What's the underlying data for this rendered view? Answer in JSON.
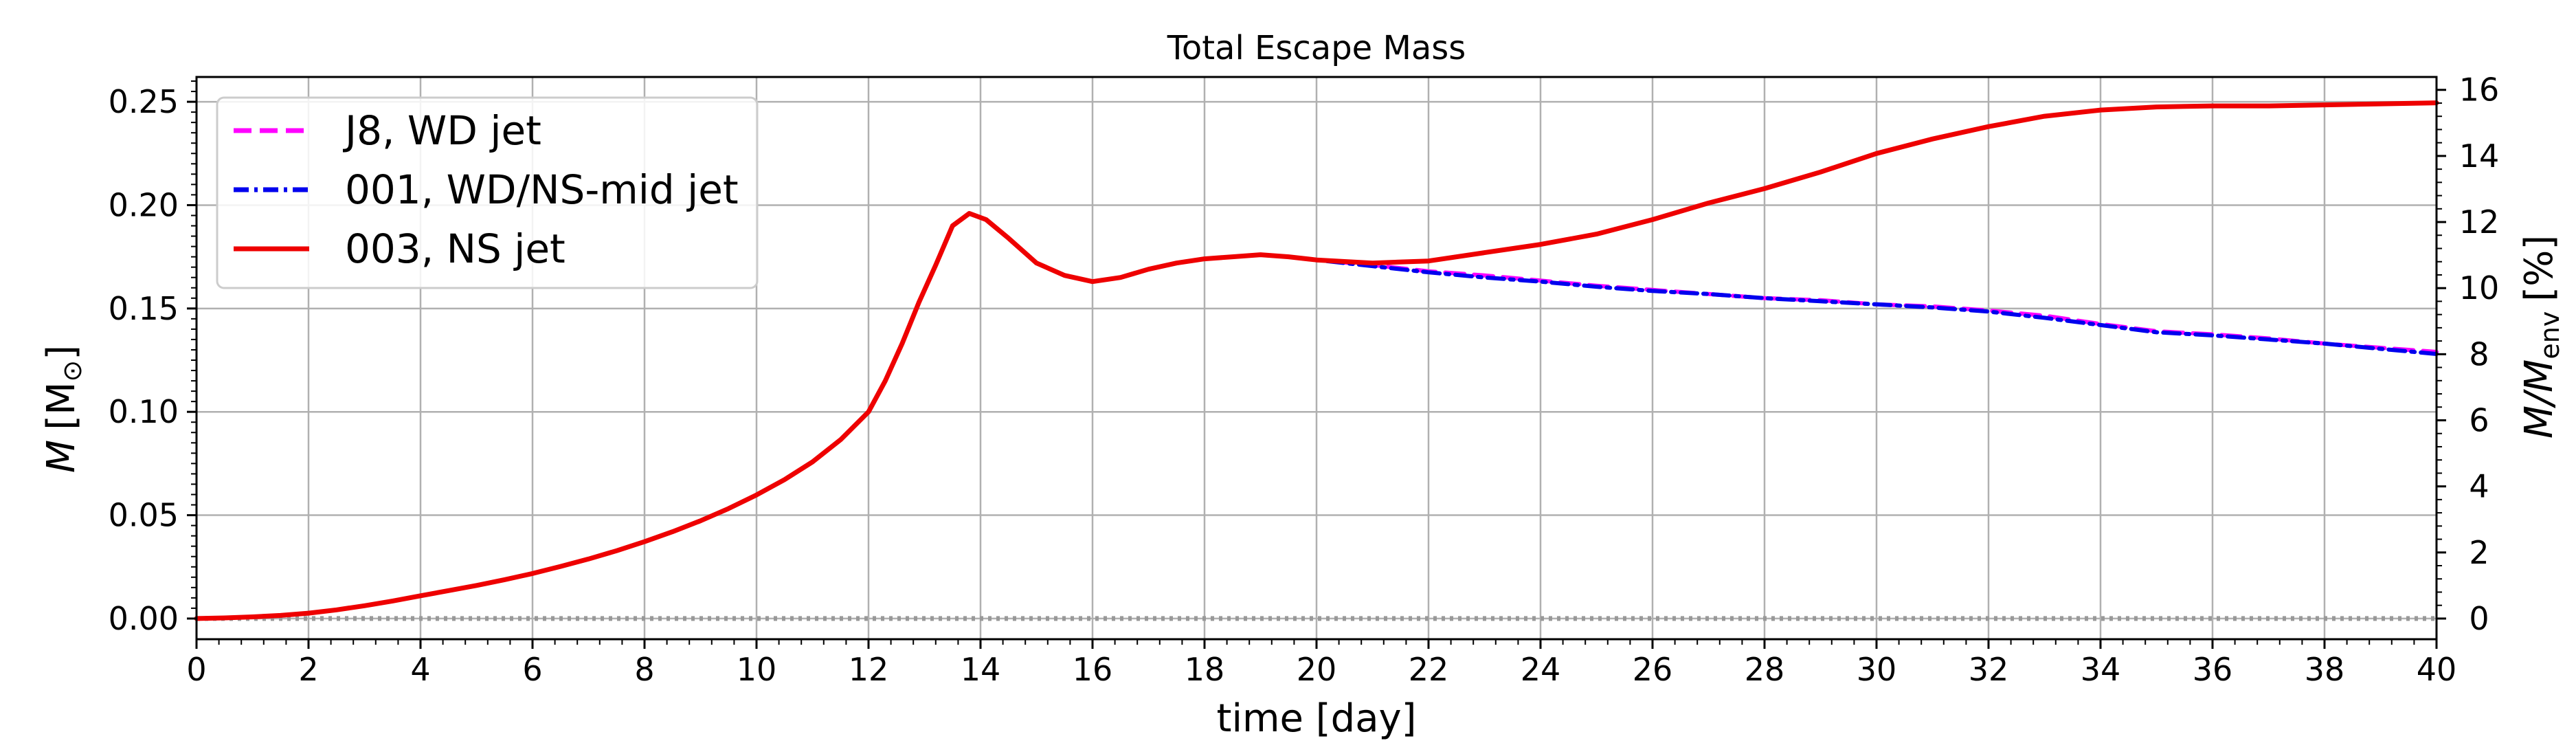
{
  "chart_data": {
    "type": "line",
    "title": "Total Escape Mass",
    "xlabel": "time [day]",
    "ylabel_prefix": "M",
    "ylabel_unit": "[M",
    "ylabel_sun": "⊙",
    "ylabel_close": "]",
    "y2label_prefix": "M/M",
    "y2label_sub": "env",
    "y2label_unit": "[%]",
    "xlim": [
      0,
      40
    ],
    "ylim": [
      -0.01,
      0.262
    ],
    "y2lim": [
      -0.6255,
      16.39
    ],
    "xticks": [
      "0",
      "2",
      "4",
      "6",
      "8",
      "10",
      "12",
      "14",
      "16",
      "18",
      "20",
      "22",
      "24",
      "26",
      "28",
      "30",
      "32",
      "34",
      "36",
      "38",
      "40"
    ],
    "yticks": [
      "0.00",
      "0.05",
      "0.10",
      "0.15",
      "0.20",
      "0.25"
    ],
    "y2ticks": [
      "0",
      "2",
      "4",
      "6",
      "8",
      "10",
      "12",
      "14",
      "16"
    ],
    "grid": true,
    "legend_position": "upper-left",
    "reference_line": {
      "y": 0.0,
      "style": "dotted",
      "color": "#999999"
    },
    "series": [
      {
        "name": "J8, WD jet",
        "color": "#ff00ff",
        "style": "dashed",
        "x": [
          0,
          0.5,
          1,
          1.5,
          2,
          2.5,
          3,
          3.5,
          4,
          4.5,
          5,
          5.5,
          6,
          6.5,
          7,
          7.5,
          8,
          8.5,
          9,
          9.5,
          10,
          10.5,
          11,
          11.5,
          12,
          12.3,
          12.6,
          12.9,
          13.2,
          13.5,
          13.8,
          14.1,
          14.5,
          15,
          15.5,
          16,
          16.5,
          17,
          17.5,
          18,
          18.5,
          19,
          19.5,
          20,
          21,
          22,
          23,
          24,
          25,
          26,
          27,
          28,
          29,
          30,
          31,
          32,
          33,
          34,
          35,
          36,
          37,
          38,
          39,
          40
        ],
        "y": [
          0,
          0.0003,
          0.0008,
          0.0015,
          0.0026,
          0.0042,
          0.0062,
          0.0085,
          0.011,
          0.0135,
          0.016,
          0.0188,
          0.0218,
          0.0252,
          0.0288,
          0.0328,
          0.0372,
          0.042,
          0.0473,
          0.0532,
          0.0598,
          0.0672,
          0.0758,
          0.0865,
          0.1,
          0.115,
          0.133,
          0.153,
          0.171,
          0.19,
          0.196,
          0.193,
          0.184,
          0.172,
          0.166,
          0.163,
          0.165,
          0.169,
          0.172,
          0.174,
          0.175,
          0.176,
          0.175,
          0.1735,
          0.171,
          0.168,
          0.166,
          0.1635,
          0.161,
          0.159,
          0.157,
          0.155,
          0.154,
          0.152,
          0.151,
          0.149,
          0.1465,
          0.1425,
          0.139,
          0.1375,
          0.1355,
          0.133,
          0.131,
          0.129
        ]
      },
      {
        "name": "001, WD/NS-mid jet",
        "color": "#0000ee",
        "style": "dashdot",
        "x": [
          0,
          0.5,
          1,
          1.5,
          2,
          2.5,
          3,
          3.5,
          4,
          4.5,
          5,
          5.5,
          6,
          6.5,
          7,
          7.5,
          8,
          8.5,
          9,
          9.5,
          10,
          10.5,
          11,
          11.5,
          12,
          12.3,
          12.6,
          12.9,
          13.2,
          13.5,
          13.8,
          14.1,
          14.5,
          15,
          15.5,
          16,
          16.5,
          17,
          17.5,
          18,
          18.5,
          19,
          19.5,
          20,
          21,
          22,
          23,
          24,
          25,
          26,
          27,
          28,
          29,
          30,
          31,
          32,
          33,
          34,
          35,
          36,
          37,
          38,
          39,
          40
        ],
        "y": [
          0,
          0.0003,
          0.0008,
          0.0015,
          0.0026,
          0.0042,
          0.0062,
          0.0085,
          0.011,
          0.0135,
          0.016,
          0.0188,
          0.0218,
          0.0252,
          0.0288,
          0.0328,
          0.0372,
          0.042,
          0.0473,
          0.0532,
          0.0598,
          0.0672,
          0.0758,
          0.0865,
          0.1,
          0.115,
          0.133,
          0.153,
          0.171,
          0.19,
          0.196,
          0.193,
          0.184,
          0.172,
          0.166,
          0.163,
          0.165,
          0.169,
          0.172,
          0.174,
          0.175,
          0.176,
          0.175,
          0.1735,
          0.1705,
          0.1675,
          0.165,
          0.163,
          0.1605,
          0.1585,
          0.157,
          0.155,
          0.1535,
          0.152,
          0.1505,
          0.1485,
          0.1455,
          0.142,
          0.1385,
          0.137,
          0.135,
          0.133,
          0.1305,
          0.128
        ]
      },
      {
        "name": "003, NS jet",
        "color": "#ee0000",
        "style": "solid",
        "x": [
          0,
          0.5,
          1,
          1.5,
          2,
          2.5,
          3,
          3.5,
          4,
          4.5,
          5,
          5.5,
          6,
          6.5,
          7,
          7.5,
          8,
          8.5,
          9,
          9.5,
          10,
          10.5,
          11,
          11.5,
          12,
          12.3,
          12.6,
          12.9,
          13.2,
          13.5,
          13.8,
          14.1,
          14.5,
          15,
          15.5,
          16,
          16.5,
          17,
          17.5,
          18,
          18.5,
          19,
          19.5,
          20,
          21,
          22,
          23,
          24,
          25,
          26,
          27,
          28,
          29,
          30,
          31,
          32,
          33,
          34,
          35,
          36,
          37,
          38,
          39,
          40
        ],
        "y": [
          0,
          0.0003,
          0.0008,
          0.0015,
          0.0026,
          0.0042,
          0.0062,
          0.0085,
          0.011,
          0.0135,
          0.016,
          0.0188,
          0.0218,
          0.0252,
          0.0288,
          0.0328,
          0.0372,
          0.042,
          0.0473,
          0.0532,
          0.0598,
          0.0672,
          0.0758,
          0.0865,
          0.1,
          0.115,
          0.133,
          0.153,
          0.171,
          0.19,
          0.196,
          0.193,
          0.184,
          0.172,
          0.166,
          0.163,
          0.165,
          0.169,
          0.172,
          0.174,
          0.175,
          0.176,
          0.175,
          0.1735,
          0.172,
          0.173,
          0.177,
          0.181,
          0.186,
          0.193,
          0.201,
          0.208,
          0.216,
          0.225,
          0.232,
          0.238,
          0.243,
          0.246,
          0.2475,
          0.248,
          0.248,
          0.2485,
          0.249,
          0.2495
        ]
      }
    ]
  }
}
